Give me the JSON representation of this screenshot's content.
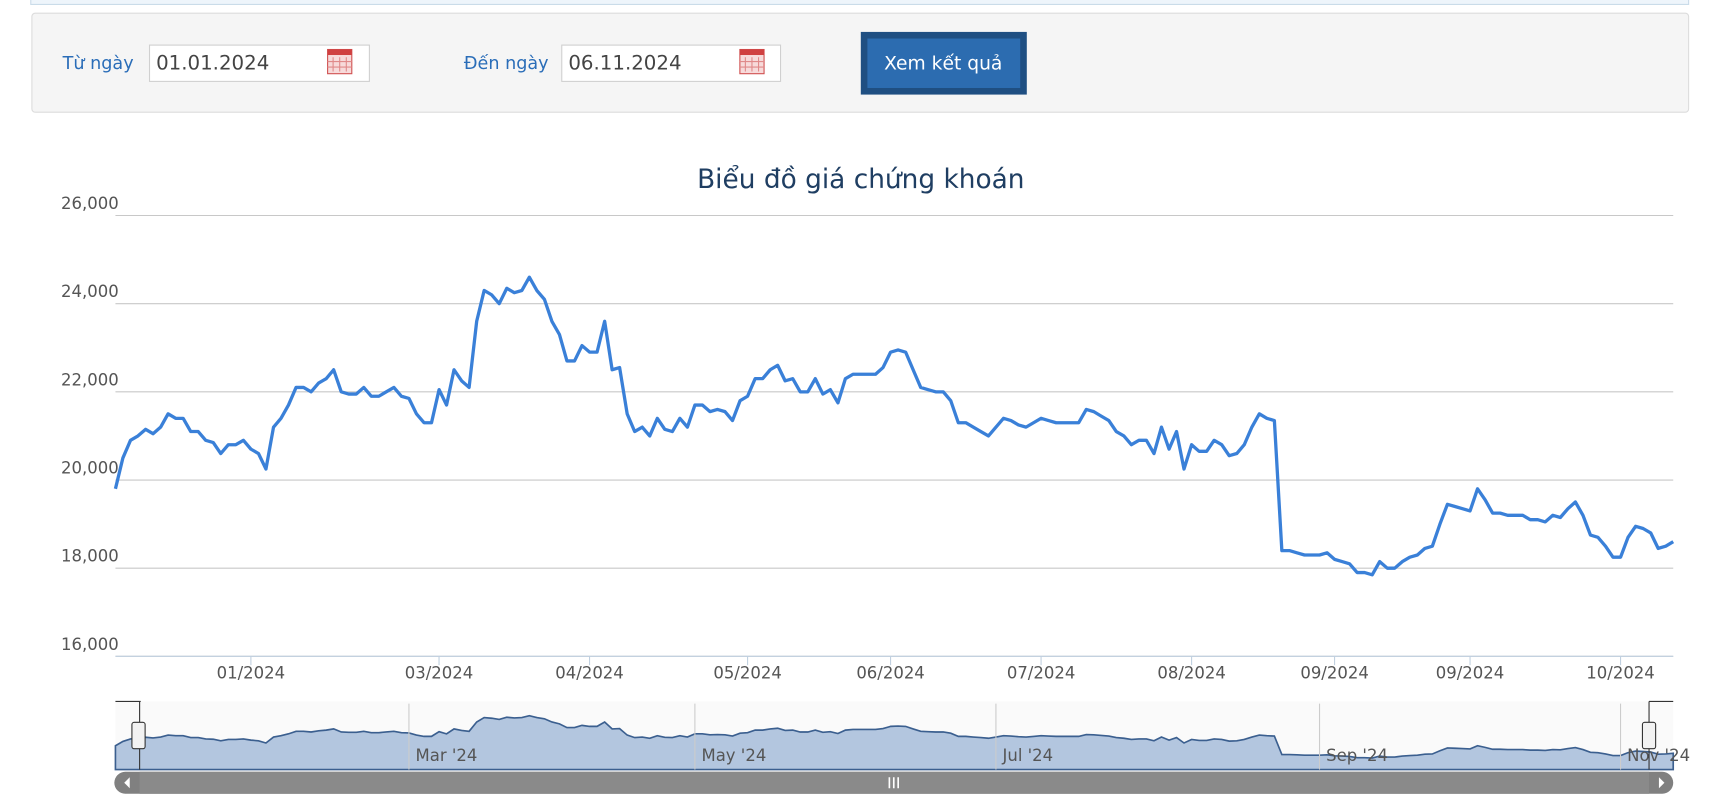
{
  "form": {
    "from_label": "Từ ngày",
    "from_value": "01.01.2024",
    "to_label": "Đến ngày",
    "to_value": "06.11.2024",
    "button": "Xem kết quả"
  },
  "chart_data": {
    "type": "line",
    "title": "Biểu đồ giá chứng khoán",
    "color": "#3a80d8",
    "ylim": [
      16000,
      26000
    ],
    "yticks": [
      {
        "value": 16000,
        "label": "16,000"
      },
      {
        "value": 18000,
        "label": "18,000"
      },
      {
        "value": 20000,
        "label": "20,000"
      },
      {
        "value": 22000,
        "label": "22,000"
      },
      {
        "value": 24000,
        "label": "24,000"
      },
      {
        "value": 26000,
        "label": "26,000"
      }
    ],
    "xticks": [
      {
        "value": 18,
        "label": "01/2024"
      },
      {
        "value": 43,
        "label": "03/2024"
      },
      {
        "value": 63,
        "label": "04/2024"
      },
      {
        "value": 84,
        "label": "05/2024"
      },
      {
        "value": 103,
        "label": "06/2024"
      },
      {
        "value": 123,
        "label": "07/2024"
      },
      {
        "value": 143,
        "label": "08/2024"
      },
      {
        "value": 162,
        "label": "09/2024"
      },
      {
        "value": 180,
        "label": "09/2024"
      },
      {
        "value": 200,
        "label": "10/2024"
      }
    ],
    "grid": true,
    "values": [
      19800,
      20500,
      20900,
      21000,
      21150,
      21050,
      21200,
      21500,
      21400,
      21400,
      21100,
      21100,
      20900,
      20850,
      20600,
      20800,
      20800,
      20900,
      20700,
      20600,
      20250,
      21200,
      21400,
      21700,
      22100,
      22100,
      22000,
      22200,
      22300,
      22500,
      22000,
      21950,
      21950,
      22100,
      21900,
      21900,
      22000,
      22100,
      21900,
      21850,
      21500,
      21300,
      21300,
      22050,
      21700,
      22500,
      22250,
      22100,
      23600,
      24300,
      24200,
      24000,
      24350,
      24250,
      24300,
      24600,
      24300,
      24100,
      23600,
      23300,
      22700,
      22700,
      23050,
      22900,
      22900,
      23600,
      22500,
      22550,
      21500,
      21100,
      21200,
      21000,
      21400,
      21150,
      21100,
      21400,
      21200,
      21700,
      21700,
      21550,
      21600,
      21550,
      21350,
      21800,
      21900,
      22300,
      22300,
      22500,
      22600,
      22250,
      22300,
      22000,
      22000,
      22300,
      21950,
      22050,
      21750,
      22300,
      22400,
      22400,
      22400,
      22400,
      22550,
      22900,
      22950,
      22900,
      22500,
      22100,
      22050,
      22000,
      22000,
      21800,
      21300,
      21300,
      21200,
      21100,
      21000,
      21200,
      21400,
      21350,
      21250,
      21200,
      21300,
      21400,
      21350,
      21300,
      21300,
      21300,
      21300,
      21600,
      21550,
      21450,
      21350,
      21100,
      21000,
      20800,
      20900,
      20900,
      20600,
      21200,
      20700,
      21100,
      20250,
      20800,
      20650,
      20650,
      20900,
      20800,
      20550,
      20600,
      20800,
      21200,
      21500,
      21400,
      21350,
      18400,
      18400,
      18350,
      18300,
      18300,
      18300,
      18350,
      18200,
      18150,
      18100,
      17900,
      17900,
      17850,
      18150,
      18000,
      18000,
      18150,
      18250,
      18300,
      18450,
      18500,
      19000,
      19450,
      19400,
      19350,
      19300,
      19800,
      19550,
      19250,
      19250,
      19200,
      19200,
      19200,
      19100,
      19100,
      19050,
      19200,
      19150,
      19350,
      19500,
      19200,
      18750,
      18700,
      18500,
      18250,
      18250,
      18700,
      18950,
      18900,
      18800,
      18450,
      18500,
      18600
    ],
    "navigator": {
      "xticks": [
        {
          "value": 39,
          "label": "Mar '24"
        },
        {
          "value": 77,
          "label": "May '24"
        },
        {
          "value": 117,
          "label": "Jul '24"
        },
        {
          "value": 160,
          "label": "Sep '24"
        },
        {
          "value": 200,
          "label": "Nov '24"
        }
      ]
    }
  }
}
